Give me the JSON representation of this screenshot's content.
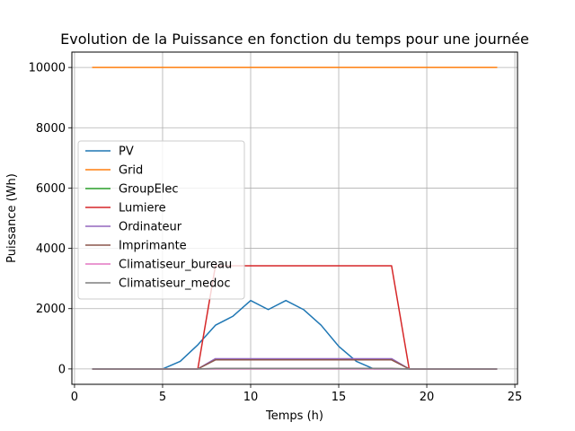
{
  "chart_data": {
    "type": "line",
    "title": "Evolution de la Puissance en fonction du temps pour une journée",
    "xlabel": "Temps (h)",
    "ylabel": "Puissance (Wh)",
    "xlim": [
      -0.15,
      25.15
    ],
    "ylim": [
      -510,
      10510
    ],
    "xticks": [
      0,
      5,
      10,
      15,
      20,
      25
    ],
    "yticks": [
      0,
      2000,
      4000,
      6000,
      8000,
      10000
    ],
    "grid": true,
    "legend_position": "center-left",
    "x": [
      1,
      2,
      3,
      4,
      5,
      6,
      7,
      8,
      9,
      10,
      11,
      12,
      13,
      14,
      15,
      16,
      17,
      18,
      19,
      20,
      21,
      22,
      23,
      24
    ],
    "series": [
      {
        "name": "PV",
        "color": "#1f77b4",
        "values": [
          0,
          0,
          0,
          0,
          0,
          250,
          800,
          1450,
          1750,
          2270,
          1970,
          2270,
          1970,
          1450,
          750,
          250,
          0,
          0,
          0,
          0,
          0,
          0,
          0,
          0
        ]
      },
      {
        "name": "Grid",
        "color": "#ff7f0e",
        "values": [
          10000,
          10000,
          10000,
          10000,
          10000,
          10000,
          10000,
          10000,
          10000,
          10000,
          10000,
          10000,
          10000,
          10000,
          10000,
          10000,
          10000,
          10000,
          10000,
          10000,
          10000,
          10000,
          10000,
          10000
        ]
      },
      {
        "name": "GroupElec",
        "color": "#2ca02c",
        "values": [
          0,
          0,
          0,
          0,
          0,
          0,
          0,
          0,
          0,
          0,
          0,
          0,
          0,
          0,
          0,
          0,
          0,
          0,
          0,
          0,
          0,
          0,
          0,
          0
        ]
      },
      {
        "name": "Lumiere",
        "color": "#d62728",
        "values": [
          0,
          0,
          0,
          0,
          0,
          0,
          0,
          3420,
          3420,
          3420,
          3420,
          3420,
          3420,
          3420,
          3420,
          3420,
          3420,
          3420,
          0,
          0,
          0,
          0,
          0,
          0
        ]
      },
      {
        "name": "Ordinateur",
        "color": "#9467bd",
        "values": [
          0,
          0,
          0,
          0,
          0,
          0,
          0,
          340,
          340,
          340,
          340,
          340,
          340,
          340,
          340,
          340,
          340,
          340,
          0,
          0,
          0,
          0,
          0,
          0
        ]
      },
      {
        "name": "Imprimante",
        "color": "#8c564b",
        "values": [
          0,
          0,
          0,
          0,
          0,
          0,
          0,
          300,
          300,
          300,
          300,
          300,
          300,
          300,
          300,
          300,
          300,
          300,
          0,
          0,
          0,
          0,
          0,
          0
        ]
      },
      {
        "name": "Climatiseur_bureau",
        "color": "#e377c2",
        "values": [
          0,
          0,
          0,
          0,
          0,
          0,
          0,
          0,
          0,
          0,
          0,
          0,
          0,
          0,
          0,
          0,
          0,
          0,
          0,
          0,
          0,
          0,
          0,
          0
        ]
      },
      {
        "name": "Climatiseur_medoc",
        "color": "#7f7f7f",
        "values": [
          0,
          0,
          0,
          0,
          0,
          0,
          0,
          20,
          20,
          20,
          20,
          20,
          20,
          20,
          20,
          20,
          20,
          20,
          0,
          0,
          0,
          0,
          0,
          0
        ]
      }
    ]
  }
}
